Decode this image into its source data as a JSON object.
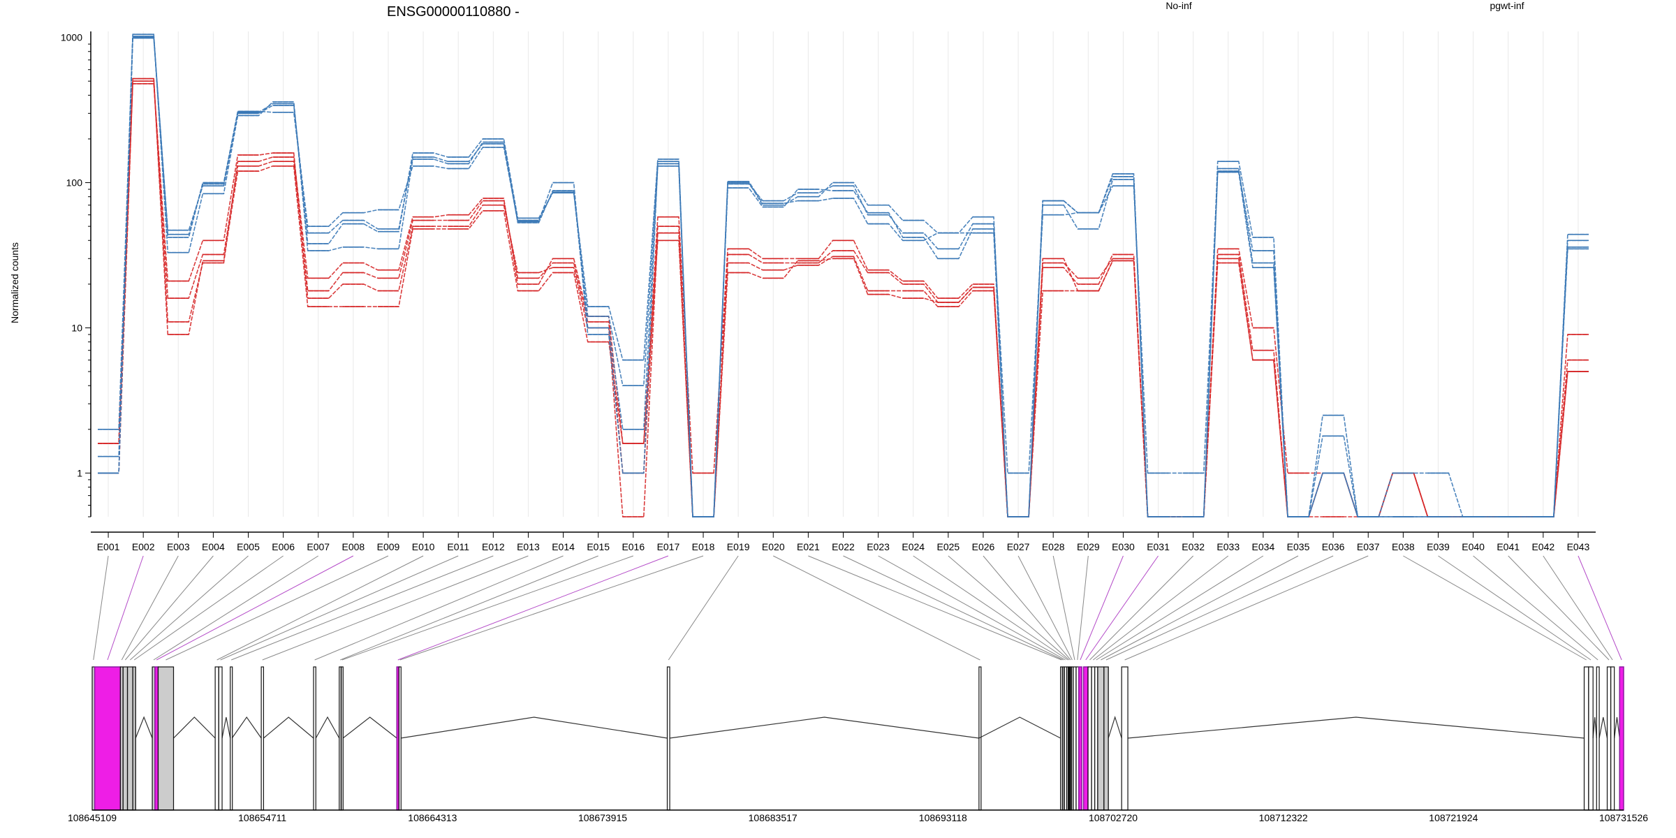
{
  "figure": {
    "title": "ENSG00000110880 -",
    "ylabel": "Normalized counts"
  },
  "legend": {
    "placement": "top-right",
    "items": [
      {
        "label": "No-inf",
        "color": "#d62728"
      },
      {
        "label": "pgwt-inf",
        "color": "#3a78b6"
      }
    ]
  },
  "chart_data": {
    "type": "line",
    "scale": "log",
    "xlabel": "",
    "ylabel": "Normalized counts",
    "ylim": [
      0.5,
      1100
    ],
    "yticks": [
      1,
      10,
      100,
      1000
    ],
    "ytick_labels": [
      "1",
      "10",
      "100",
      "1000"
    ],
    "categories": [
      "E001",
      "E002",
      "E003",
      "E004",
      "E005",
      "E006",
      "E007",
      "E008",
      "E009",
      "E010",
      "E011",
      "E012",
      "E013",
      "E014",
      "E015",
      "E016",
      "E017",
      "E018",
      "E019",
      "E020",
      "E021",
      "E022",
      "E023",
      "E024",
      "E025",
      "E026",
      "E027",
      "E028",
      "E029",
      "E030",
      "E031",
      "E032",
      "E033",
      "E034",
      "E035",
      "E036",
      "E037",
      "E038",
      "E039",
      "E040",
      "E041",
      "E042",
      "E043"
    ],
    "zero_floor": 0.5,
    "series_groups": [
      {
        "name": "No-inf",
        "color": "#d62728",
        "replicates": [
          [
            1.0,
            520,
            11,
            28,
            140,
            150,
            22,
            28,
            25,
            58,
            60,
            78,
            20,
            30,
            12,
            1.6,
            58,
            1.0,
            35,
            30,
            30,
            40,
            25,
            21,
            16,
            20,
            0.5,
            26,
            20,
            32,
            0.5,
            0.5,
            35,
            10,
            1.0,
            1.0,
            0.5,
            1.0,
            0.5,
            0.5,
            0.5,
            0.5,
            9
          ],
          [
            1.0,
            500,
            16,
            32,
            130,
            140,
            18,
            24,
            22,
            55,
            55,
            75,
            22,
            28,
            11,
            1.0,
            50,
            0.5,
            32,
            28,
            28,
            34,
            24,
            20,
            15,
            19,
            0.5,
            28,
            22,
            30,
            0.5,
            0.5,
            32,
            7,
            0.5,
            1.0,
            0.5,
            1.0,
            0.5,
            0.5,
            0.5,
            0.5,
            6
          ],
          [
            1.6,
            480,
            21,
            40,
            155,
            160,
            16,
            20,
            18,
            50,
            50,
            70,
            24,
            26,
            10,
            0.5,
            45,
            0.5,
            28,
            25,
            27,
            31,
            18,
            18,
            14,
            18,
            0.5,
            30,
            18,
            29,
            0.5,
            0.5,
            30,
            6,
            0.5,
            0.5,
            0.5,
            1.0,
            0.5,
            0.5,
            0.5,
            0.5,
            5
          ],
          [
            1.6,
            520,
            9,
            29,
            120,
            130,
            14,
            14,
            14,
            48,
            48,
            64,
            18,
            24,
            8,
            1.6,
            40,
            0.5,
            24,
            22,
            29,
            30,
            17,
            16,
            15,
            19,
            0.5,
            18,
            18,
            29,
            0.5,
            0.5,
            28,
            6,
            0.5,
            1.0,
            0.5,
            1.0,
            0.5,
            0.5,
            0.5,
            0.5,
            5
          ]
        ]
      },
      {
        "name": "pgwt-inf",
        "color": "#3a78b6",
        "replicates": [
          [
            2,
            1020,
            42,
            100,
            305,
            350,
            38,
            52,
            46,
            160,
            150,
            200,
            57,
            85,
            14,
            6,
            145,
            0.5,
            100,
            70,
            80,
            100,
            70,
            55,
            45,
            58,
            0.5,
            75,
            62,
            115,
            0.5,
            0.5,
            140,
            42,
            0.5,
            2.5,
            0.5,
            0.5,
            0.5,
            0.5,
            0.5,
            0.5,
            44
          ],
          [
            1.3,
            1000,
            47,
            95,
            300,
            340,
            45,
            55,
            48,
            150,
            140,
            185,
            55,
            86,
            12,
            4,
            140,
            0.5,
            98,
            75,
            85,
            95,
            60,
            45,
            35,
            52,
            0.5,
            70,
            48,
            105,
            0.5,
            0.5,
            120,
            34,
            0.5,
            1.8,
            0.5,
            0.5,
            0.5,
            0.5,
            0.5,
            0.5,
            40
          ],
          [
            1.0,
            1050,
            33,
            84,
            290,
            360,
            34,
            36,
            35,
            145,
            135,
            190,
            53,
            88,
            10,
            2,
            130,
            0.5,
            92,
            68,
            90,
            88,
            62,
            42,
            30,
            48,
            1.0,
            60,
            62,
            95,
            1.0,
            1.0,
            125,
            28,
            0.5,
            1.0,
            0.5,
            1.0,
            1.0,
            0.5,
            0.5,
            0.5,
            35
          ],
          [
            1.0,
            990,
            44,
            98,
            310,
            305,
            50,
            62,
            65,
            130,
            125,
            175,
            54,
            100,
            9,
            1.0,
            135,
            0.5,
            102,
            72,
            75,
            78,
            52,
            40,
            45,
            45,
            0.5,
            75,
            62,
            110,
            0.5,
            0.5,
            118,
            26,
            0.5,
            1.0,
            0.5,
            0.5,
            0.5,
            0.5,
            0.5,
            0.5,
            36
          ]
        ]
      }
    ],
    "gene_model": {
      "coord_start": 108645109,
      "coord_end": 108731526,
      "coord_ticks": [
        108645109,
        108654711,
        108664313,
        108673915,
        108683517,
        108693118,
        108702720,
        108712322,
        108721924,
        108731526
      ],
      "coord_tick_labels": [
        "108645109",
        "108654711",
        "108664313",
        "108673915",
        "108683517",
        "108693118",
        "108702720",
        "108712322",
        "108721924",
        "108731526"
      ],
      "highlight_color": "#ee1ee6",
      "highlighted_exons": [
        "E002",
        "E008",
        "E017",
        "E030",
        "E031",
        "E043"
      ],
      "exons": [
        {
          "id": "E001",
          "start": 108645109,
          "end": 108645250
        },
        {
          "id": "E002",
          "start": 108645250,
          "end": 108646700
        },
        {
          "id": "E003",
          "start": 108646700,
          "end": 108646850
        },
        {
          "id": "E004",
          "start": 108646850,
          "end": 108647100
        },
        {
          "id": "E005",
          "start": 108647100,
          "end": 108647400
        },
        {
          "id": "E006",
          "start": 108647400,
          "end": 108647560
        },
        {
          "id": "E007",
          "start": 108648500,
          "end": 108648650
        },
        {
          "id": "E008",
          "start": 108648650,
          "end": 108648830
        },
        {
          "id": "E009",
          "start": 108648830,
          "end": 108649700
        },
        {
          "id": "E010",
          "start": 108652050,
          "end": 108652250
        },
        {
          "id": "E011",
          "start": 108652250,
          "end": 108652440
        },
        {
          "id": "E012",
          "start": 108652900,
          "end": 108653000
        },
        {
          "id": "E013",
          "start": 108654650,
          "end": 108654780
        },
        {
          "id": "E014",
          "start": 108657600,
          "end": 108657730
        },
        {
          "id": "E015",
          "start": 108659050,
          "end": 108659150
        },
        {
          "id": "E016",
          "start": 108659150,
          "end": 108659260
        },
        {
          "id": "E017",
          "start": 108662300,
          "end": 108662420
        },
        {
          "id": "E018",
          "start": 108662420,
          "end": 108662520
        },
        {
          "id": "E019",
          "start": 108677560,
          "end": 108677700
        },
        {
          "id": "E020",
          "start": 108695150,
          "end": 108695250
        },
        {
          "id": "E021",
          "start": 108699750,
          "end": 108699850
        },
        {
          "id": "E022",
          "start": 108699850,
          "end": 108699950
        },
        {
          "id": "E023",
          "start": 108699950,
          "end": 108700100
        },
        {
          "id": "E024",
          "start": 108700100,
          "end": 108700180
        },
        {
          "id": "E025",
          "start": 108700180,
          "end": 108700260
        },
        {
          "id": "E026",
          "start": 108700260,
          "end": 108700350
        },
        {
          "id": "E027",
          "start": 108700350,
          "end": 108700470
        },
        {
          "id": "E028",
          "start": 108700470,
          "end": 108700630
        },
        {
          "id": "E029",
          "start": 108700630,
          "end": 108700780
        },
        {
          "id": "E030",
          "start": 108700780,
          "end": 108700950
        },
        {
          "id": "E031",
          "start": 108701050,
          "end": 108701300
        },
        {
          "id": "E032",
          "start": 108701300,
          "end": 108701500
        },
        {
          "id": "E033",
          "start": 108701500,
          "end": 108701680
        },
        {
          "id": "E034",
          "start": 108701680,
          "end": 108701850
        },
        {
          "id": "E035",
          "start": 108701850,
          "end": 108702200
        },
        {
          "id": "E036",
          "start": 108702200,
          "end": 108702450
        },
        {
          "id": "E037",
          "start": 108703200,
          "end": 108703550
        },
        {
          "id": "E038",
          "start": 108729300,
          "end": 108729550
        },
        {
          "id": "E039",
          "start": 108729550,
          "end": 108729800
        },
        {
          "id": "E040",
          "start": 108730000,
          "end": 108730150
        },
        {
          "id": "E041",
          "start": 108730600,
          "end": 108730800
        },
        {
          "id": "E042",
          "start": 108730800,
          "end": 108731000
        },
        {
          "id": "E043",
          "start": 108731300,
          "end": 108731526
        }
      ],
      "introns": [
        [
          108646700,
          108647560
        ],
        [
          108647560,
          108648500
        ],
        [
          108649700,
          108652050
        ],
        [
          108652440,
          108652900
        ],
        [
          108653000,
          108654650
        ],
        [
          108654780,
          108657600
        ],
        [
          108657730,
          108659050
        ],
        [
          108659260,
          108662300
        ],
        [
          108662520,
          108677560
        ],
        [
          108677700,
          108695150
        ],
        [
          108695150,
          108699750
        ],
        [
          108702450,
          108703200
        ],
        [
          108703550,
          108729300
        ],
        [
          108729800,
          108730000
        ],
        [
          108730150,
          108730600
        ],
        [
          108731000,
          108731300
        ]
      ],
      "shaded_blocks": [
        [
          108645109,
          108646700
        ],
        [
          108646700,
          108647560
        ],
        [
          108648500,
          108649700
        ],
        [
          108701850,
          108702450
        ]
      ]
    }
  }
}
